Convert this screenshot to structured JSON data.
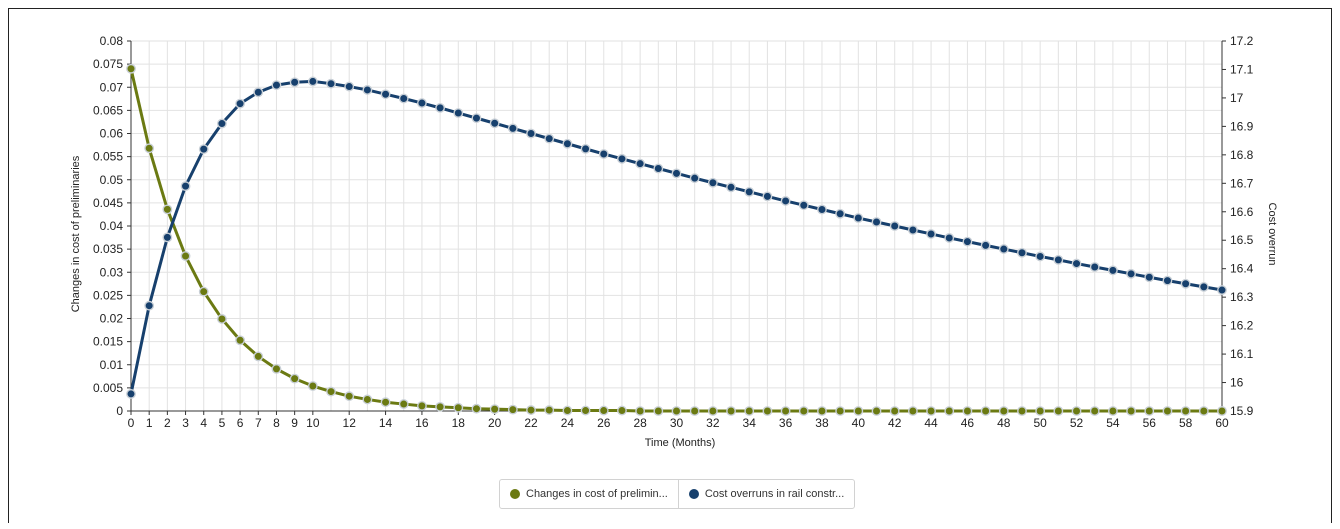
{
  "chart_data": {
    "type": "line",
    "xlabel": "Time (Months)",
    "ylabel_left": "Changes in cost of preliminaries",
    "ylabel_right": "Cost overrun",
    "xlim": [
      0,
      60
    ],
    "ylim_left": [
      0,
      0.08
    ],
    "ylim_right": [
      15.9,
      17.2
    ],
    "x_ticks": [
      0,
      1,
      2,
      3,
      4,
      5,
      6,
      7,
      8,
      9,
      10,
      12,
      14,
      16,
      18,
      20,
      22,
      24,
      26,
      28,
      30,
      32,
      34,
      36,
      38,
      40,
      42,
      44,
      46,
      48,
      50,
      52,
      54,
      56,
      58,
      60
    ],
    "y_ticks_left": [
      "0",
      "0.005",
      "0.01",
      "0.015",
      "0.02",
      "0.025",
      "0.03",
      "0.035",
      "0.04",
      "0.045",
      "0.05",
      "0.055",
      "0.06",
      "0.065",
      "0.07",
      "0.075",
      "0.08"
    ],
    "y_ticks_right": [
      "15.9",
      "16",
      "16.1",
      "16.2",
      "16.3",
      "16.4",
      "16.5",
      "16.6",
      "16.7",
      "16.8",
      "16.9",
      "17",
      "17.1",
      "17.2"
    ],
    "grid": true,
    "legend_position": "bottom-center",
    "series": [
      {
        "name": "Changes in cost of prelimin...",
        "axis": "left",
        "color": "#6b7a12",
        "x": [
          0,
          1,
          2,
          3,
          4,
          5,
          6,
          7,
          8,
          9,
          10,
          11,
          12,
          13,
          14,
          15,
          16,
          17,
          18,
          19,
          20,
          21,
          22,
          23,
          24,
          25,
          26,
          27,
          28,
          29,
          30,
          31,
          32,
          33,
          34,
          35,
          36,
          37,
          38,
          39,
          40,
          41,
          42,
          43,
          44,
          45,
          46,
          47,
          48,
          49,
          50,
          51,
          52,
          53,
          54,
          55,
          56,
          57,
          58,
          59,
          60
        ],
        "values": [
          0.074,
          0.0568,
          0.0436,
          0.0335,
          0.0258,
          0.0199,
          0.0153,
          0.0118,
          0.0091,
          0.007,
          0.0054,
          0.0042,
          0.0032,
          0.0025,
          0.0019,
          0.0015,
          0.0011,
          0.0009,
          0.0007,
          0.0005,
          0.0004,
          0.0003,
          0.0002,
          0.0002,
          0.0001,
          0.0001,
          0.0001,
          0.0001,
          0,
          0,
          0,
          0,
          0,
          0,
          0,
          0,
          0,
          0,
          0,
          0,
          0,
          0,
          0,
          0,
          0,
          0,
          0,
          0,
          0,
          0,
          0,
          0,
          0,
          0,
          0,
          0,
          0,
          0,
          0,
          0,
          0
        ]
      },
      {
        "name": "Cost overruns in rail constr...",
        "axis": "right",
        "color": "#17406d",
        "x": [
          0,
          1,
          2,
          3,
          4,
          5,
          6,
          7,
          8,
          9,
          10,
          11,
          12,
          13,
          14,
          15,
          16,
          17,
          18,
          19,
          20,
          21,
          22,
          23,
          24,
          25,
          26,
          27,
          28,
          29,
          30,
          31,
          32,
          33,
          34,
          35,
          36,
          37,
          38,
          39,
          40,
          41,
          42,
          43,
          44,
          45,
          46,
          47,
          48,
          49,
          50,
          51,
          52,
          53,
          54,
          55,
          56,
          57,
          58,
          59,
          60
        ],
        "values": [
          15.96,
          16.27,
          16.51,
          16.69,
          16.82,
          16.91,
          16.98,
          17.02,
          17.045,
          17.055,
          17.058,
          17.05,
          17.04,
          17.028,
          17.013,
          16.998,
          16.982,
          16.965,
          16.947,
          16.929,
          16.911,
          16.893,
          16.875,
          16.857,
          16.839,
          16.821,
          16.803,
          16.786,
          16.769,
          16.752,
          16.735,
          16.718,
          16.702,
          16.686,
          16.67,
          16.654,
          16.638,
          16.623,
          16.608,
          16.593,
          16.578,
          16.564,
          16.55,
          16.536,
          16.522,
          16.508,
          16.495,
          16.482,
          16.469,
          16.456,
          16.443,
          16.431,
          16.418,
          16.406,
          16.394,
          16.382,
          16.37,
          16.358,
          16.347,
          16.336,
          16.325
        ]
      }
    ]
  },
  "legend": {
    "item1_label": "Changes in cost of prelimin...",
    "item2_label": "Cost overruns in rail constr...",
    "item1_color": "#6b7a12",
    "item2_color": "#17406d"
  }
}
